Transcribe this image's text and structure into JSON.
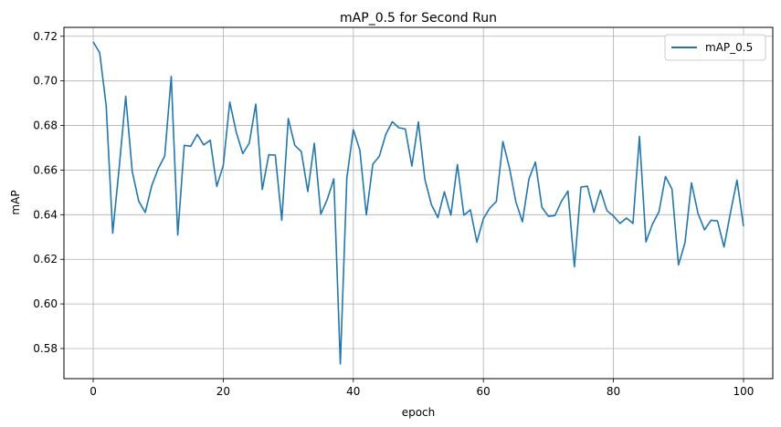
{
  "chart_data": {
    "type": "line",
    "title": "mAP_0.5 for Second Run",
    "xlabel": "epoch",
    "ylabel": "mAP",
    "xlim": [
      -4.5,
      104.5
    ],
    "ylim": [
      0.5665,
      0.724
    ],
    "xticks": [
      0,
      20,
      40,
      60,
      80,
      100
    ],
    "yticks": [
      0.58,
      0.6,
      0.62,
      0.64,
      0.66,
      0.68,
      0.7,
      0.72
    ],
    "xtick_labels": [
      "0",
      "20",
      "40",
      "60",
      "80",
      "100"
    ],
    "ytick_labels": [
      "0.58",
      "0.60",
      "0.62",
      "0.64",
      "0.66",
      "0.68",
      "0.70",
      "0.72"
    ],
    "grid": true,
    "legend_position": "top-right",
    "series": [
      {
        "name": "mAP_0.5",
        "color": "#1f77b4",
        "x": [
          0,
          1,
          2,
          3,
          4,
          5,
          6,
          7,
          8,
          9,
          10,
          11,
          12,
          13,
          14,
          15,
          16,
          17,
          18,
          19,
          20,
          21,
          22,
          23,
          24,
          25,
          26,
          27,
          28,
          29,
          30,
          31,
          32,
          33,
          34,
          35,
          36,
          37,
          38,
          39,
          40,
          41,
          42,
          43,
          44,
          45,
          46,
          47,
          48,
          49,
          50,
          51,
          52,
          53,
          54,
          55,
          56,
          57,
          58,
          59,
          60,
          61,
          62,
          63,
          64,
          65,
          66,
          67,
          68,
          69,
          70,
          71,
          72,
          73,
          74,
          75,
          76,
          77,
          78,
          79,
          80,
          81,
          82,
          83,
          84,
          85,
          86,
          87,
          88,
          89,
          90,
          91,
          92,
          93,
          94,
          95,
          96,
          97,
          98,
          99,
          100
        ],
        "values": [
          0.7175,
          0.7126,
          0.6887,
          0.6317,
          0.6612,
          0.6931,
          0.6594,
          0.6461,
          0.641,
          0.653,
          0.6607,
          0.6663,
          0.702,
          0.6309,
          0.6711,
          0.6707,
          0.676,
          0.6713,
          0.6734,
          0.6527,
          0.6621,
          0.6905,
          0.677,
          0.6674,
          0.6721,
          0.6896,
          0.6513,
          0.6669,
          0.6667,
          0.6375,
          0.6831,
          0.6711,
          0.6683,
          0.6504,
          0.672,
          0.6402,
          0.6469,
          0.6561,
          0.5731,
          0.6564,
          0.6781,
          0.669,
          0.6399,
          0.6627,
          0.6662,
          0.6761,
          0.6817,
          0.679,
          0.6784,
          0.6618,
          0.6816,
          0.6559,
          0.6446,
          0.6387,
          0.6503,
          0.6398,
          0.6625,
          0.6398,
          0.6422,
          0.6277,
          0.6382,
          0.643,
          0.646,
          0.6728,
          0.6611,
          0.6457,
          0.6368,
          0.656,
          0.6636,
          0.6433,
          0.6393,
          0.6396,
          0.646,
          0.6506,
          0.6167,
          0.6524,
          0.6528,
          0.6411,
          0.651,
          0.6418,
          0.6394,
          0.6361,
          0.6385,
          0.6361,
          0.6751,
          0.6278,
          0.6358,
          0.6413,
          0.6571,
          0.6515,
          0.6175,
          0.6274,
          0.6543,
          0.6406,
          0.6332,
          0.6375,
          0.6372,
          0.6255,
          0.641,
          0.6555,
          0.6348
        ]
      }
    ]
  }
}
